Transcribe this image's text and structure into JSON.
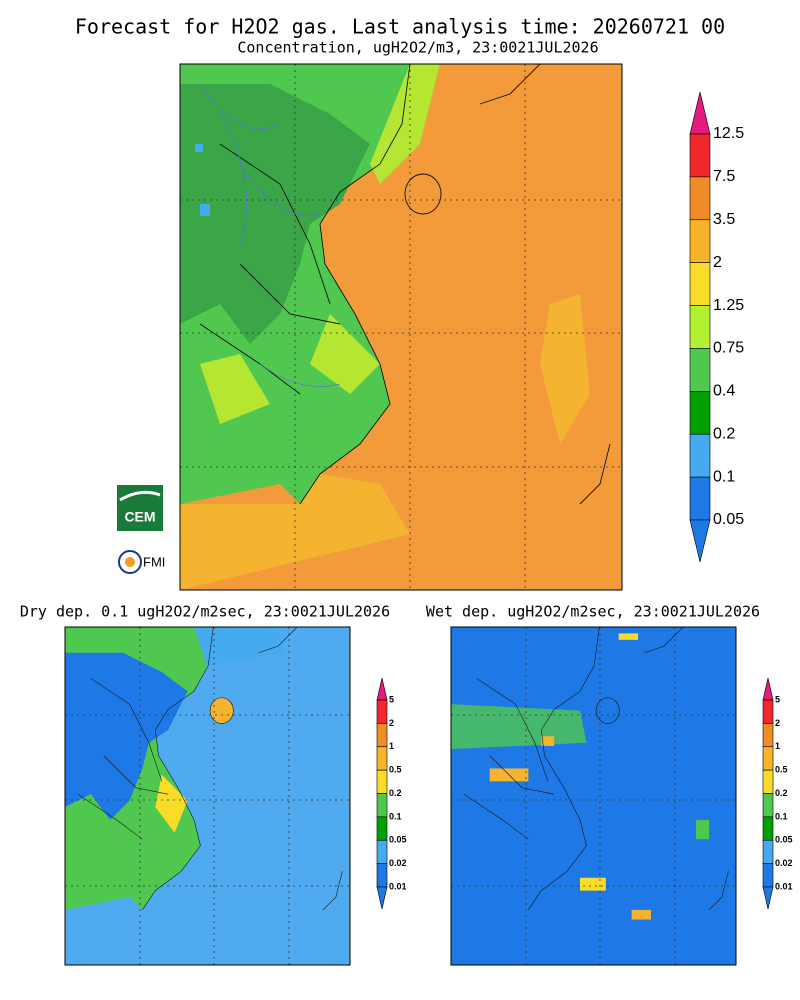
{
  "title": "Forecast for H2O2 gas. Last analysis time: 20260721 00",
  "main": {
    "subtitle": "Concentration, ugH2O2/m3, 23:0021JUL2026",
    "colorbar": [
      "12.5",
      "7.5",
      "3.5",
      "2",
      "1.25",
      "0.75",
      "0.4",
      "0.2",
      "0.1",
      "0.05"
    ]
  },
  "dry": {
    "subtitle": "Dry dep. 0.1 ugH2O2/m2sec, 23:0021JUL2026",
    "colorbar": [
      "5",
      "2",
      "1",
      "0.5",
      "0.2",
      "0.1",
      "0.05",
      "0.02",
      "0.01"
    ]
  },
  "wet": {
    "subtitle": "Wet dep. ugH2O2/m2sec, 23:0021JUL2026",
    "colorbar": [
      "5",
      "2",
      "1",
      "0.5",
      "0.2",
      "0.1",
      "0.05",
      "0.02",
      "0.01"
    ]
  },
  "logos": [
    "CEM",
    "FMI"
  ]
}
